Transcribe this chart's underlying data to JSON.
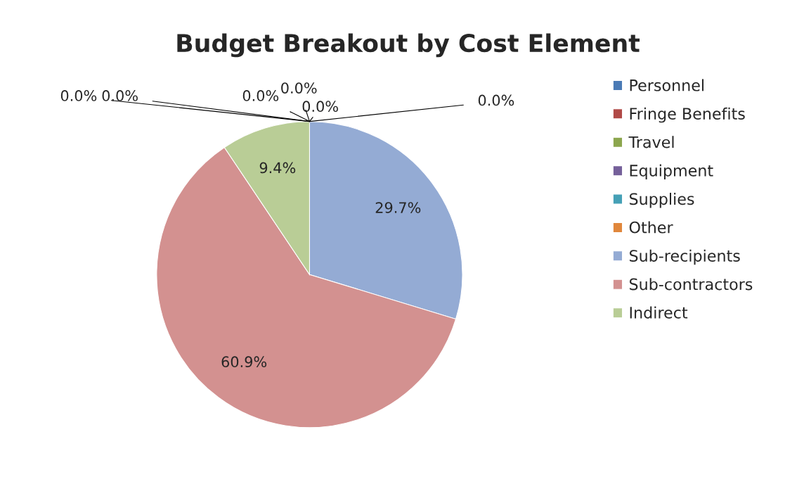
{
  "chart_data": {
    "type": "pie",
    "title": "Budget Breakout by Cost Element",
    "categories": [
      "Personnel",
      "Fringe Benefits",
      "Travel",
      "Equipment",
      "Supplies",
      "Other",
      "Sub-recipients",
      "Sub-contractors",
      "Indirect"
    ],
    "values": [
      0.0,
      0.0,
      0.0,
      0.0,
      0.0,
      0.0,
      29.7,
      60.9,
      9.4
    ],
    "colors": [
      "#4a7ab5",
      "#b04a47",
      "#8ca64e",
      "#75609a",
      "#45a0b6",
      "#e0873c",
      "#94abd4",
      "#d39190",
      "#b9cd96"
    ],
    "value_labels": [
      "0.0%",
      "0.0%",
      "0.0%",
      "0.0%",
      "0.0%",
      "0.0%",
      "29.7%",
      "60.9%",
      "9.4%"
    ],
    "legend": "right"
  }
}
